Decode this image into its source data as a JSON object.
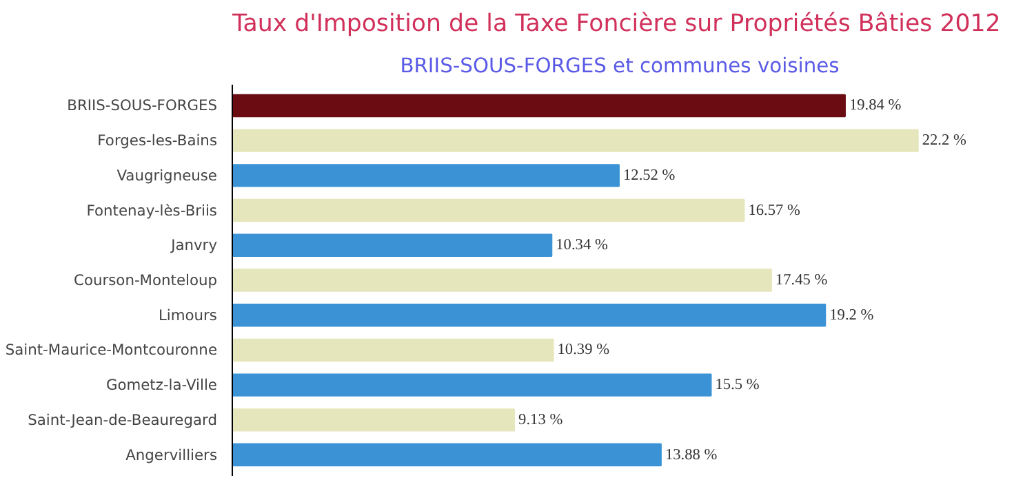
{
  "chart_data": {
    "type": "bar",
    "orientation": "horizontal",
    "title": "Taux d'Imposition de la Taxe Foncière sur Propriétés Bâties 2012",
    "subtitle": "BRIIS-SOUS-FORGES et communes voisines",
    "categories": [
      "BRIIS-SOUS-FORGES",
      "Forges-les-Bains",
      "Vaugrigneuse",
      "Fontenay-lès-Briis",
      "Janvry",
      "Courson-Monteloup",
      "Limours",
      "Saint-Maurice-Montcouronne",
      "Gometz-la-Ville",
      "Saint-Jean-de-Beauregard",
      "Angervilliers"
    ],
    "values": [
      19.84,
      22.2,
      12.52,
      16.57,
      10.34,
      17.45,
      19.2,
      10.39,
      15.5,
      9.13,
      13.88
    ],
    "colors": [
      "#6a0c12",
      "#e6e6bc",
      "#3b93d6",
      "#e6e6bc",
      "#3b93d6",
      "#e6e6bc",
      "#3b93d6",
      "#e6e6bc",
      "#3b93d6",
      "#e6e6bc",
      "#3b93d6"
    ],
    "value_labels": [
      "19.84 %",
      "22.2 %",
      "12.52 %",
      "16.57 %",
      "10.34 %",
      "17.45 %",
      "19.2 %",
      "10.39 %",
      "15.5 %",
      "9.13 %",
      "13.88 %"
    ]
  }
}
